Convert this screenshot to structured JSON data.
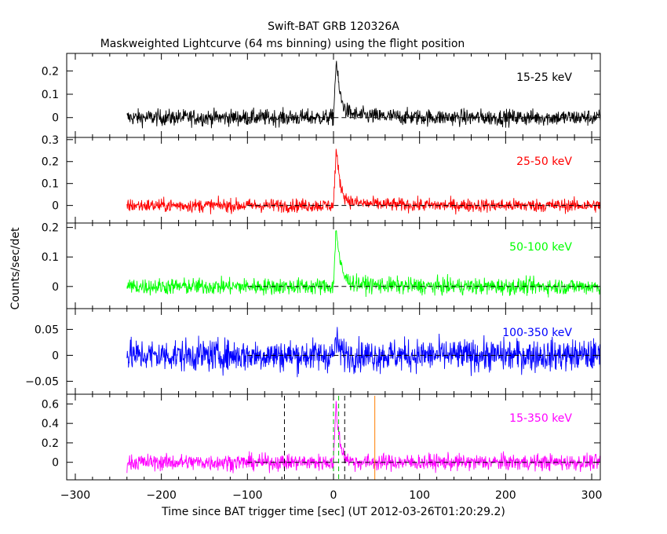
{
  "chart_data": {
    "type": "line",
    "title": "Swift-BAT GRB 120326A",
    "subtitle": "Maskweighted Lightcurve (64 ms binning) using the flight position",
    "xlabel": "Time since BAT trigger time [sec] (UT 2012-03-26T01:20:29.2)",
    "ylabel": "Counts/sec/det",
    "xlim": [
      -310,
      310
    ],
    "xticks": [
      -300,
      -200,
      -100,
      0,
      100,
      200,
      300
    ],
    "data_start": -240,
    "data_end": 310,
    "zero_line_start": -100,
    "peak_time": 3,
    "panels": [
      {
        "band": "15-25 keV",
        "color": "#000000",
        "ylim": [
          -0.085,
          0.275
        ],
        "yticks": [
          0,
          0.1,
          0.2
        ],
        "yticklabels": [
          "0",
          "0.1",
          "0.2"
        ],
        "noise": 0.025,
        "peak": 0.24,
        "label_pos": "right-top"
      },
      {
        "band": "25-50 keV",
        "color": "#ff0000",
        "ylim": [
          -0.08,
          0.31
        ],
        "yticks": [
          0,
          0.1,
          0.2,
          0.3
        ],
        "yticklabels": [
          "0",
          "0.1",
          "0.2",
          "0.3"
        ],
        "noise": 0.022,
        "peak": 0.25,
        "label_pos": "right-top"
      },
      {
        "band": "50-100 keV",
        "color": "#00ff00",
        "ylim": [
          -0.075,
          0.215
        ],
        "yticks": [
          0,
          0.1,
          0.2
        ],
        "yticklabels": [
          "0",
          "0.1",
          "0.2"
        ],
        "noise": 0.02,
        "peak": 0.2,
        "label_pos": "right-top"
      },
      {
        "band": "100-350 keV",
        "color": "#0000ff",
        "ylim": [
          -0.075,
          0.09
        ],
        "yticks": [
          -0.05,
          0,
          0.05
        ],
        "yticklabels": [
          "−0.05",
          "0",
          "0.05"
        ],
        "noise": 0.022,
        "peak": 0.03,
        "label_pos": "right-top"
      },
      {
        "band": "15-350 keV",
        "color": "#ff00ff",
        "ylim": [
          -0.18,
          0.7
        ],
        "yticks": [
          0,
          0.2,
          0.4,
          0.6
        ],
        "yticklabels": [
          "0",
          "0.2",
          "0.4",
          "0.6"
        ],
        "noise": 0.06,
        "peak": 0.6,
        "label_pos": "right-top"
      }
    ],
    "markers": [
      {
        "x": -57,
        "color": "#000000",
        "style": "dashed"
      },
      {
        "x": 0,
        "color": "#00c000",
        "style": "dashed"
      },
      {
        "x": 6,
        "color": "#00c000",
        "style": "dashed"
      },
      {
        "x": 13,
        "color": "#000000",
        "style": "dashed"
      },
      {
        "x": 48,
        "color": "#ff8000",
        "style": "solid"
      }
    ]
  }
}
